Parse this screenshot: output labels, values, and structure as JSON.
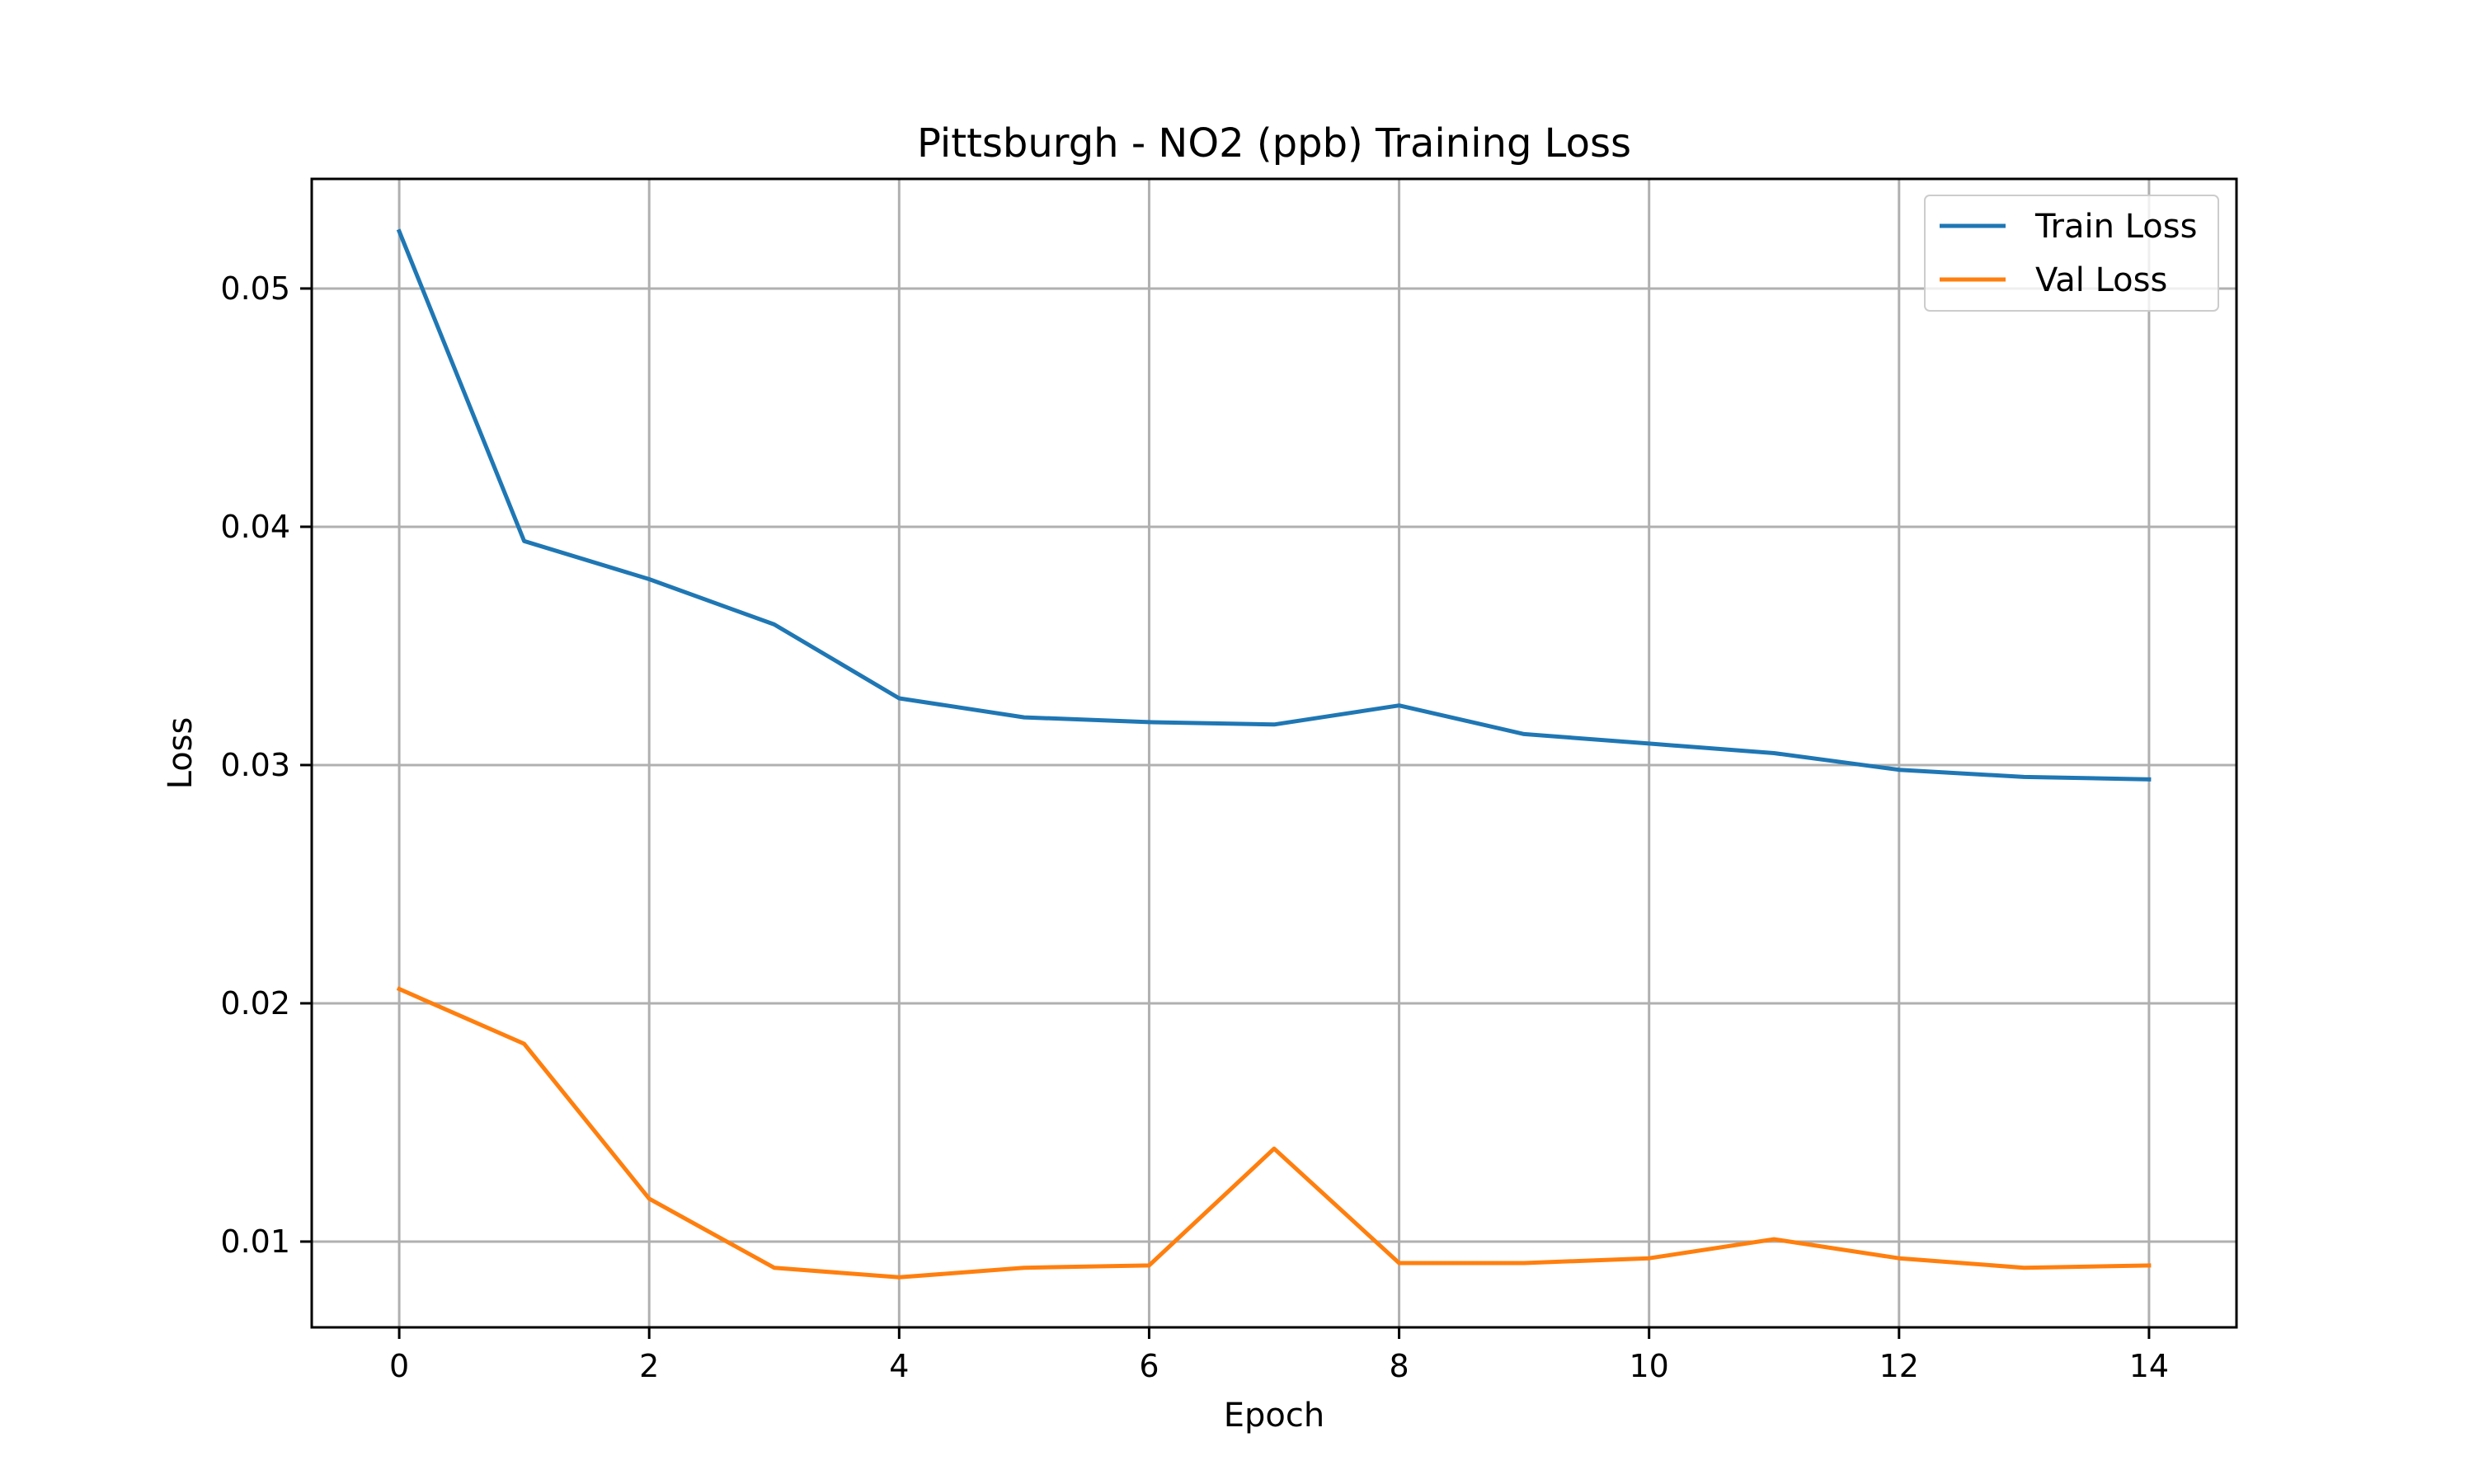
{
  "chart_data": {
    "type": "line",
    "title": "Pittsburgh - NO2 (ppb) Training Loss",
    "xlabel": "Epoch",
    "ylabel": "Loss",
    "x": [
      0,
      1,
      2,
      3,
      4,
      5,
      6,
      7,
      8,
      9,
      10,
      11,
      12,
      13,
      14
    ],
    "xlim": [
      -0.7,
      14.7
    ],
    "ylim": [
      0.0064,
      0.0546
    ],
    "xticks": [
      0,
      2,
      4,
      6,
      8,
      10,
      12,
      14
    ],
    "xtick_labels": [
      "0",
      "2",
      "4",
      "6",
      "8",
      "10",
      "12",
      "14"
    ],
    "yticks": [
      0.01,
      0.02,
      0.03,
      0.04,
      0.05
    ],
    "ytick_labels": [
      "0.01",
      "0.02",
      "0.03",
      "0.04",
      "0.05"
    ],
    "grid": true,
    "legend_position": "top-right",
    "series": [
      {
        "name": "Train Loss",
        "color": "#1f77b4",
        "values": [
          0.0524,
          0.0394,
          0.0378,
          0.0359,
          0.0328,
          0.032,
          0.0318,
          0.0317,
          0.0325,
          0.0313,
          0.0309,
          0.0305,
          0.0298,
          0.0295,
          0.0294
        ]
      },
      {
        "name": "Val Loss",
        "color": "#ff7f0e",
        "values": [
          0.0206,
          0.0183,
          0.0118,
          0.0089,
          0.0085,
          0.0089,
          0.009,
          0.0139,
          0.0091,
          0.0091,
          0.0093,
          0.0101,
          0.0093,
          0.0089,
          0.009
        ]
      }
    ]
  }
}
